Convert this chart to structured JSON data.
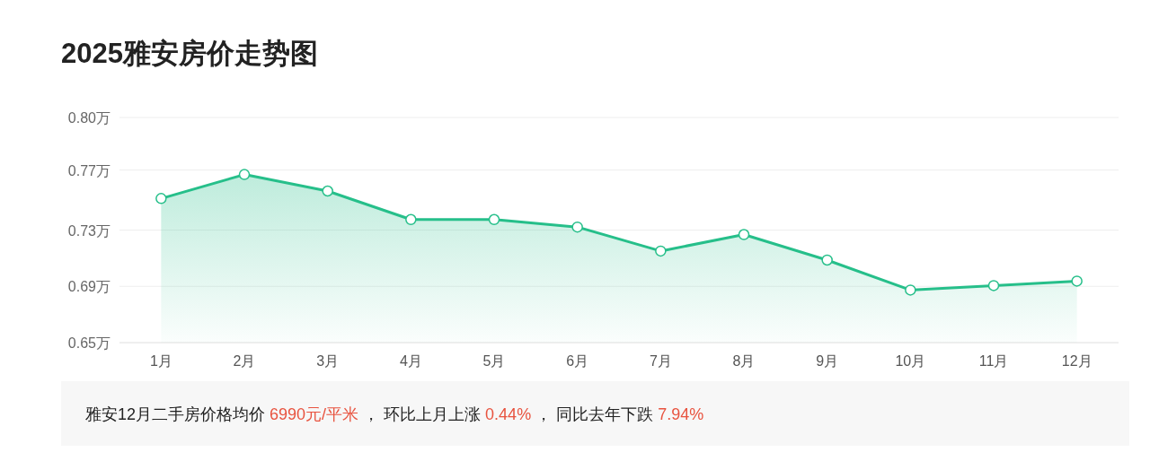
{
  "chart_data": {
    "type": "area",
    "title": "2025雅安房价走势图",
    "categories": [
      "1月",
      "2月",
      "3月",
      "4月",
      "5月",
      "6月",
      "7月",
      "8月",
      "9月",
      "10月",
      "11月",
      "12月"
    ],
    "series": [
      {
        "color": "#26bf8a",
        "values": [
          0.746,
          0.762,
          0.751,
          0.732,
          0.732,
          0.727,
          0.711,
          0.722,
          0.705,
          0.685,
          0.688,
          0.691
        ]
      }
    ],
    "ylim": [
      0.65,
      0.8
    ],
    "yticks": [
      {
        "value": 0.65,
        "label": "0.65万"
      },
      {
        "value": 0.6875,
        "label": "0.69万"
      },
      {
        "value": 0.725,
        "label": "0.73万"
      },
      {
        "value": 0.765,
        "label": "0.77万"
      },
      {
        "value": 0.8,
        "label": "0.80万"
      }
    ],
    "grid": "y",
    "marker": "circle",
    "annotations": [
      "雅安12月二手房价格均价 6990元/平米 ， 环比上月上涨 0.44% ， 同比去年下跌 7.94%"
    ]
  }
}
